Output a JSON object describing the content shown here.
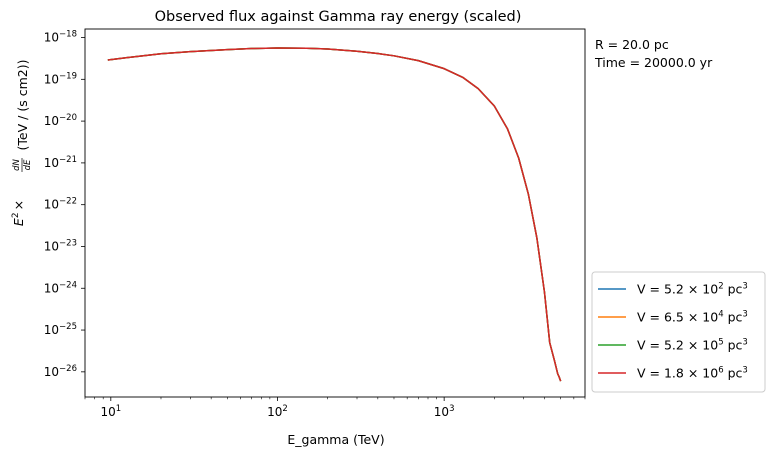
{
  "chart_data": {
    "type": "line",
    "title": "Observed flux against Gamma ray energy (scaled)",
    "xlabel": "E_gamma (TeV)",
    "ylabel": {
      "prefix": "E",
      "prefix_exp": "2",
      "times": "×",
      "frac_num": "dN",
      "frac_den": "dE",
      "unit": "(TeV / (s cm2))"
    },
    "x_scale": "log",
    "y_scale": "log",
    "xlim": [
      7.0,
      7000.0
    ],
    "ylim": [
      2.5e-27,
      1.6e-18
    ],
    "x_ticks": [
      {
        "value": 10,
        "base": "10",
        "exp": "1"
      },
      {
        "value": 100,
        "base": "10",
        "exp": "2"
      },
      {
        "value": 1000,
        "base": "10",
        "exp": "3"
      }
    ],
    "y_ticks": [
      {
        "value": 1e-18,
        "base": "10",
        "exp": "−18"
      },
      {
        "value": 1e-19,
        "base": "10",
        "exp": "−19"
      },
      {
        "value": 1e-20,
        "base": "10",
        "exp": "−20"
      },
      {
        "value": 1e-21,
        "base": "10",
        "exp": "−21"
      },
      {
        "value": 1e-22,
        "base": "10",
        "exp": "−22"
      },
      {
        "value": 1e-23,
        "base": "10",
        "exp": "−23"
      },
      {
        "value": 1e-24,
        "base": "10",
        "exp": "−24"
      },
      {
        "value": 1e-25,
        "base": "10",
        "exp": "−25"
      },
      {
        "value": 1e-26,
        "base": "10",
        "exp": "−26"
      }
    ],
    "annotations": [
      "R = 20.0 pc",
      "Time = 20000.0 yr"
    ],
    "legend_placement": "lower-right-outside",
    "x": [
      9.6,
      15,
      20,
      30,
      50,
      70,
      100,
      150,
      200,
      300,
      400,
      500,
      700,
      1000,
      1300,
      1600,
      2000,
      2400,
      2800,
      3200,
      3600,
      4000,
      4300,
      4600,
      4800,
      4900,
      5000
    ],
    "series": [
      {
        "name": {
          "prefix": "V = 5.2 × 10",
          "exp": "2",
          "unit": " pc",
          "unit_exp": "3"
        },
        "color": "#1f77b4",
        "y": [
          2.9e-19,
          3.6e-19,
          4.1e-19,
          4.6e-19,
          5.15e-19,
          5.45e-19,
          5.6e-19,
          5.55e-19,
          5.3e-19,
          4.7e-19,
          4.15e-19,
          3.65e-19,
          2.8e-19,
          1.8e-19,
          1.1e-19,
          6e-20,
          2.3e-20,
          6.5e-21,
          1.3e-21,
          1.8e-22,
          1.6e-23,
          8e-25,
          5e-26,
          1.8e-26,
          9e-27,
          7.5e-27,
          6e-27
        ]
      },
      {
        "name": {
          "prefix": "V = 6.5 × 10",
          "exp": "4",
          "unit": " pc",
          "unit_exp": "3"
        },
        "color": "#ff7f0e",
        "y": [
          2.9e-19,
          3.6e-19,
          4.1e-19,
          4.6e-19,
          5.15e-19,
          5.45e-19,
          5.6e-19,
          5.55e-19,
          5.3e-19,
          4.7e-19,
          4.15e-19,
          3.65e-19,
          2.8e-19,
          1.8e-19,
          1.1e-19,
          6e-20,
          2.3e-20,
          6.5e-21,
          1.3e-21,
          1.8e-22,
          1.6e-23,
          8e-25,
          5e-26,
          1.8e-26,
          9e-27,
          7.5e-27,
          6e-27
        ]
      },
      {
        "name": {
          "prefix": "V = 5.2 × 10",
          "exp": "5",
          "unit": " pc",
          "unit_exp": "3"
        },
        "color": "#2ca02c",
        "y": [
          2.9e-19,
          3.6e-19,
          4.1e-19,
          4.6e-19,
          5.15e-19,
          5.45e-19,
          5.6e-19,
          5.55e-19,
          5.3e-19,
          4.7e-19,
          4.15e-19,
          3.65e-19,
          2.8e-19,
          1.8e-19,
          1.1e-19,
          6e-20,
          2.3e-20,
          6.5e-21,
          1.3e-21,
          1.8e-22,
          1.6e-23,
          8e-25,
          5e-26,
          1.8e-26,
          9e-27,
          7.5e-27,
          6e-27
        ]
      },
      {
        "name": {
          "prefix": "V = 1.8 × 10",
          "exp": "6",
          "unit": " pc",
          "unit_exp": "3"
        },
        "color": "#d62728",
        "y": [
          2.9e-19,
          3.6e-19,
          4.1e-19,
          4.6e-19,
          5.15e-19,
          5.45e-19,
          5.6e-19,
          5.55e-19,
          5.3e-19,
          4.7e-19,
          4.15e-19,
          3.65e-19,
          2.8e-19,
          1.8e-19,
          1.1e-19,
          6e-20,
          2.3e-20,
          6.5e-21,
          1.3e-21,
          1.8e-22,
          1.6e-23,
          8e-25,
          5e-26,
          1.8e-26,
          9e-27,
          7.5e-27,
          6e-27
        ]
      }
    ]
  }
}
